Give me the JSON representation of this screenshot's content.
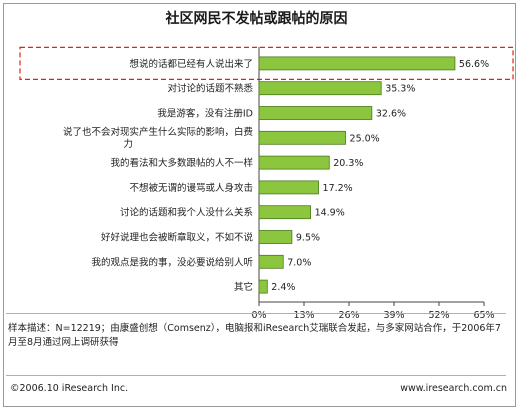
{
  "chart_data": {
    "type": "bar",
    "orientation": "horizontal",
    "title": "社区网民不发帖或跟帖的原因",
    "categories": [
      "想说的话都已经有人说出来了",
      "对讨论的话题不熟悉",
      "我是游客，没有注册ID",
      "说了也不会对现实产生什么实际的影响，白费力",
      "我的看法和大多数跟帖的人不一样",
      "不想被无谓的谩骂或人身攻击",
      "讨论的话题和我个人没什么关系",
      "好好说理也会被断章取义，不如不说",
      "我的观点是我的事，没必要说给别人听",
      "其它"
    ],
    "category_lines": [
      [
        "想说的话都已经有人说出来了"
      ],
      [
        "对讨论的话题不熟悉"
      ],
      [
        "我是游客，没有注册ID"
      ],
      [
        "说了也不会对现实产生什么实际的影响，白费",
        "力"
      ],
      [
        "我的看法和大多数跟帖的人不一样"
      ],
      [
        "不想被无谓的谩骂或人身攻击"
      ],
      [
        "讨论的话题和我个人没什么关系"
      ],
      [
        "好好说理也会被断章取义，不如不说"
      ],
      [
        "我的观点是我的事，没必要说给别人听"
      ],
      [
        "其它"
      ]
    ],
    "values": [
      56.6,
      35.3,
      32.6,
      25.0,
      20.3,
      17.2,
      14.9,
      9.5,
      7.0,
      2.4
    ],
    "value_labels": [
      "56.6%",
      "35.3%",
      "32.6%",
      "25.0%",
      "20.3%",
      "17.2%",
      "14.9%",
      "9.5%",
      "7.0%",
      "2.4%"
    ],
    "xlim": [
      0,
      65
    ],
    "xticks": [
      0,
      13,
      26,
      39,
      52,
      65
    ],
    "xtick_labels": [
      "0%",
      "13%",
      "26%",
      "39%",
      "52%",
      "65%"
    ],
    "highlighted_category": "想说的话都已经有人说出来了",
    "grid": false,
    "colors": {
      "bar_fill": "#8cc63f",
      "bar_stroke": "#4a7a1a",
      "highlight_border": "#d9261c"
    }
  },
  "footer": {
    "sample_note": "样本描述：N=12219；由康盛创想（Comsenz），电脑报和iResearch艾瑞联合发起，与多家网站合作，于2006年7月至8月通过网上调研获得",
    "copyright": "©2006.10 iResearch Inc.",
    "website": "www.iresearch.com.cn"
  }
}
